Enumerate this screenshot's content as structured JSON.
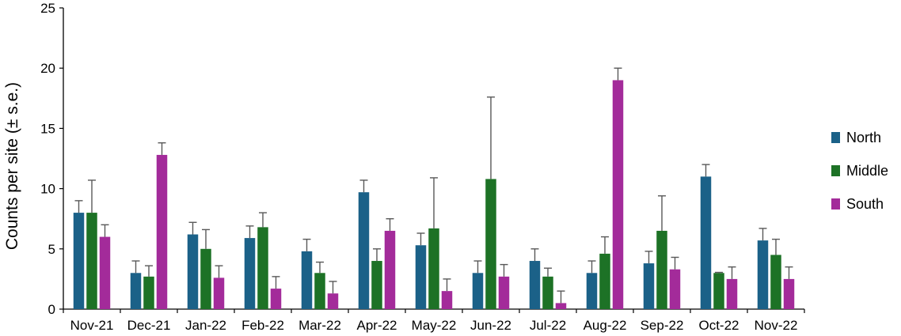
{
  "chart_data": {
    "type": "bar",
    "ylabel": "Counts per site (± s.e.)",
    "xlabel": "",
    "ylim": [
      0,
      25
    ],
    "yticks": [
      0,
      5,
      10,
      15,
      20,
      25
    ],
    "grid": false,
    "legend_position": "right",
    "categories": [
      "Nov-21",
      "Dec-21",
      "Jan-22",
      "Feb-22",
      "Mar-22",
      "Apr-22",
      "May-22",
      "Jun-22",
      "Jul-22",
      "Aug-22",
      "Sep-22",
      "Oct-22",
      "Nov-22"
    ],
    "series": [
      {
        "name": "North",
        "color": "#1b6188",
        "values": [
          8.0,
          3.0,
          6.2,
          5.9,
          4.8,
          9.7,
          5.3,
          3.0,
          4.0,
          3.0,
          3.8,
          11.0,
          5.7
        ],
        "errors": [
          1.0,
          1.0,
          1.0,
          1.0,
          1.0,
          1.0,
          1.0,
          1.0,
          1.0,
          1.0,
          1.0,
          1.0,
          1.0
        ]
      },
      {
        "name": "Middle",
        "color": "#1d7226",
        "values": [
          8.0,
          2.7,
          5.0,
          6.8,
          3.0,
          4.0,
          6.7,
          10.8,
          2.7,
          4.6,
          6.5,
          3.0,
          4.5
        ],
        "errors": [
          2.7,
          0.9,
          1.6,
          1.2,
          0.9,
          1.0,
          4.2,
          6.8,
          0.7,
          1.4,
          2.9,
          0.05,
          1.3
        ]
      },
      {
        "name": "South",
        "color": "#a32b9a",
        "values": [
          6.0,
          12.8,
          2.6,
          1.7,
          1.3,
          6.5,
          1.5,
          2.7,
          0.5,
          19.0,
          3.3,
          2.5,
          2.5
        ],
        "errors": [
          1.0,
          1.0,
          1.0,
          1.0,
          1.0,
          1.0,
          1.0,
          1.0,
          1.0,
          1.0,
          1.0,
          1.0,
          1.0
        ]
      }
    ]
  }
}
